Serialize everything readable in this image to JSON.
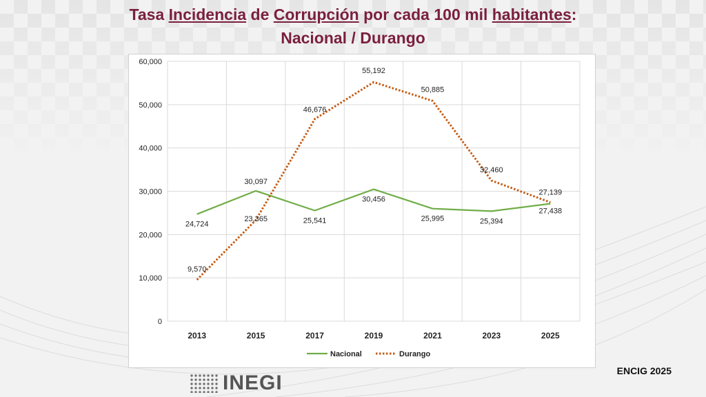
{
  "title": {
    "parts": [
      "Tasa ",
      "Incidencia",
      " de  ",
      "Corrupción",
      " por ",
      "cada 100 mil",
      " ",
      "habitantes",
      ":"
    ],
    "line2": "Nacional / Durango"
  },
  "footer_tag": "ENCIG 2025",
  "logo_text": "INEGI",
  "colors": {
    "nacional": "#70ad47",
    "durango": "#c55a11",
    "title": "#7a1f3d"
  },
  "chart_data": {
    "type": "line",
    "categories": [
      "2013",
      "2015",
      "2017",
      "2019",
      "2021",
      "2023",
      "2025"
    ],
    "series": [
      {
        "name": "Nacional",
        "values": [
          24724,
          30097,
          25541,
          30456,
          25995,
          25394,
          27139
        ],
        "style": "solid",
        "labels": [
          "24,724",
          "30,097",
          "25,541",
          "30,456",
          "25,995",
          "25,394",
          "27,139"
        ]
      },
      {
        "name": "Durango",
        "values": [
          9570,
          23365,
          46676,
          55192,
          50885,
          32460,
          27438
        ],
        "style": "dotted",
        "labels": [
          "9,570",
          "23,365",
          "46,676",
          "55,192",
          "50,885",
          "32,460",
          "27,438"
        ]
      }
    ],
    "ylim": [
      0,
      60000
    ],
    "yticks": [
      "0",
      "10,000",
      "20,000",
      "30,000",
      "40,000",
      "50,000",
      "60,000"
    ],
    "grid": true,
    "legend": "bottom"
  }
}
